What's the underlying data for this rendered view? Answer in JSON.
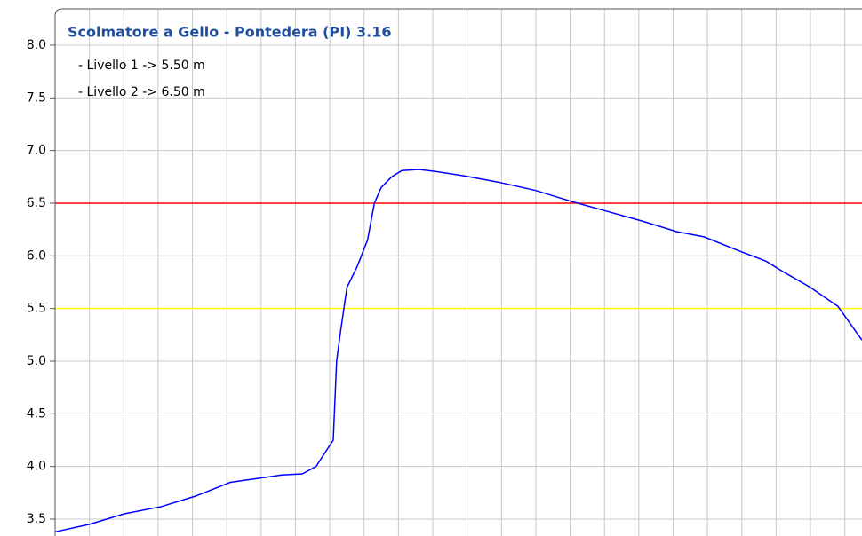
{
  "chart_data": {
    "type": "line",
    "title": "Scolmatore a Gello - Pontedera (PI) 3.16",
    "legend": [
      "- Livello 1 -> 5.50 m",
      "- Livello 2 -> 6.50 m"
    ],
    "thresholds": [
      {
        "value": 5.5,
        "color": "#ffff00"
      },
      {
        "value": 6.5,
        "color": "#ff0000"
      }
    ],
    "x": [
      0,
      1,
      2,
      3.1,
      4.1,
      5.1,
      6.2,
      6.6,
      7.2,
      7.6,
      7.9,
      8.1,
      8.2,
      8.3,
      8.5,
      8.8,
      9.1,
      9.3,
      9.5,
      9.8,
      10.1,
      10.6,
      11.1,
      11.9,
      12.9,
      14,
      15,
      16,
      17.1,
      18.1,
      18.9,
      19.9,
      20.7,
      21.2,
      22,
      22.8,
      23.5
    ],
    "series": [
      {
        "name": "Livello",
        "color": "#0000ff",
        "values": [
          3.38,
          3.45,
          3.55,
          3.62,
          3.72,
          3.85,
          3.9,
          3.92,
          3.93,
          4.0,
          4.15,
          4.25,
          5.0,
          5.25,
          5.7,
          5.9,
          6.15,
          6.5,
          6.65,
          6.75,
          6.81,
          6.82,
          6.8,
          6.76,
          6.7,
          6.62,
          6.52,
          6.43,
          6.33,
          6.23,
          6.18,
          6.05,
          5.95,
          5.85,
          5.7,
          5.52,
          5.2
        ]
      }
    ],
    "xlim": [
      0,
      23.5
    ],
    "xgrid": [
      1,
      2,
      3,
      4,
      5,
      6,
      7,
      8,
      9,
      10,
      11,
      12,
      13,
      14,
      15,
      16,
      17,
      18,
      19,
      20,
      21,
      22,
      23
    ],
    "ylim": [
      3.34,
      8.345
    ],
    "yticks": [
      {
        "value": 3.5,
        "label": "3.5"
      },
      {
        "value": 4,
        "label": "4.0"
      },
      {
        "value": 4.5,
        "label": "4.5"
      },
      {
        "value": 5,
        "label": "5.0"
      },
      {
        "value": 5.5,
        "label": "5.5"
      },
      {
        "value": 6,
        "label": "6.0"
      },
      {
        "value": 6.5,
        "label": "6.5"
      },
      {
        "value": 7,
        "label": "7.0"
      },
      {
        "value": 7.5,
        "label": "7.5"
      },
      {
        "value": 8,
        "label": "8.0"
      }
    ],
    "grid": true
  }
}
